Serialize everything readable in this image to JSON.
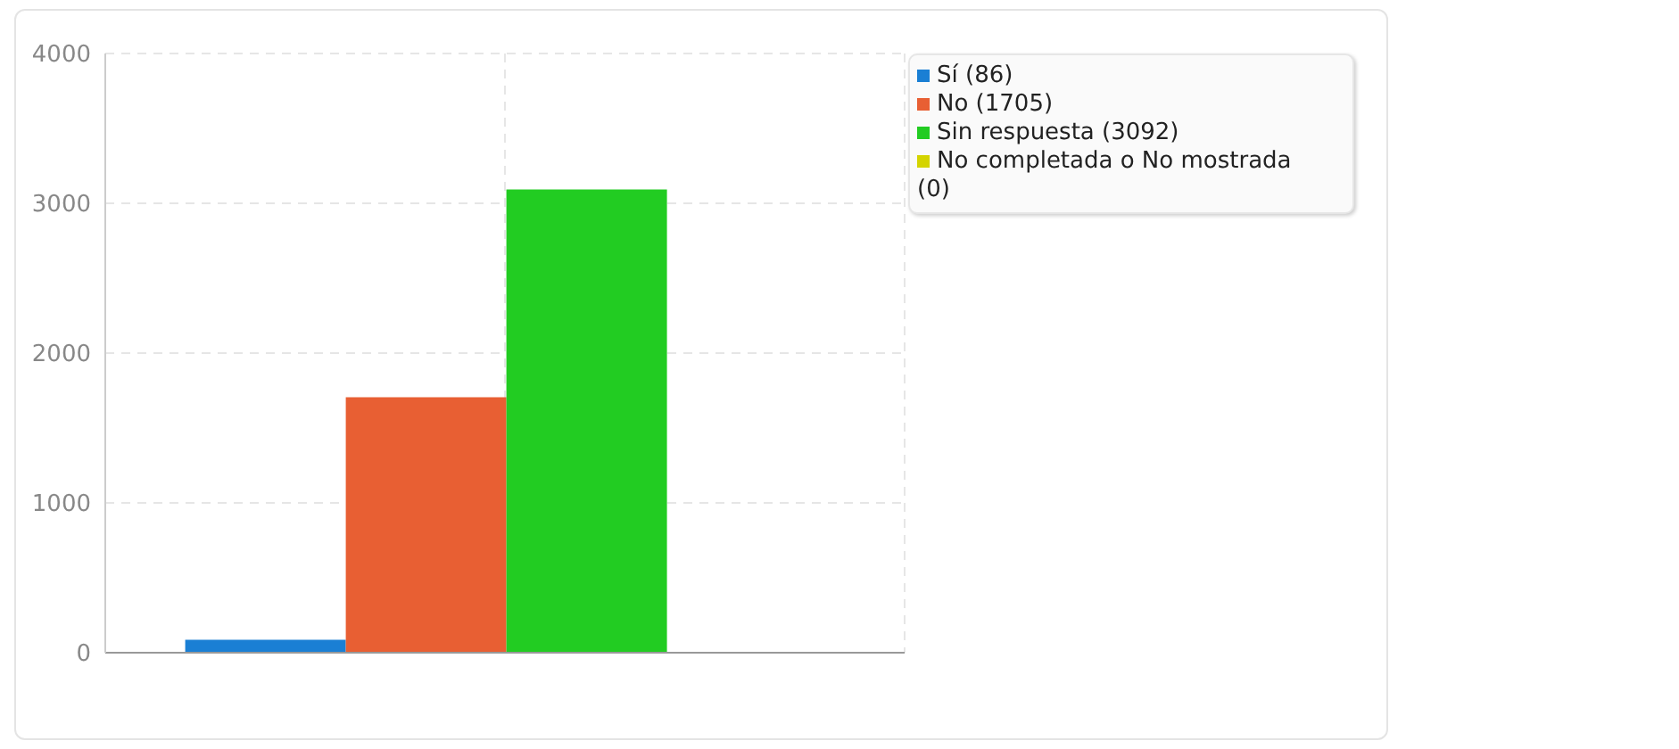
{
  "chart_data": {
    "type": "bar",
    "categories": [
      null
    ],
    "series": [
      {
        "name": "Sí (86)",
        "color": "#1a7fd4",
        "values": [
          86
        ]
      },
      {
        "name": "No (1705)",
        "color": "#e85f33",
        "values": [
          1705
        ]
      },
      {
        "name": "Sin respuesta (3092)",
        "color": "#22cc22",
        "values": [
          3092
        ]
      },
      {
        "name": "No completada o No mostrada (0)",
        "color": "#d4d400",
        "values": [
          0
        ]
      }
    ],
    "ylim": [
      0,
      4000
    ],
    "yticks": [
      0,
      1000,
      2000,
      3000,
      4000
    ],
    "grid": true,
    "legend": "top right"
  }
}
